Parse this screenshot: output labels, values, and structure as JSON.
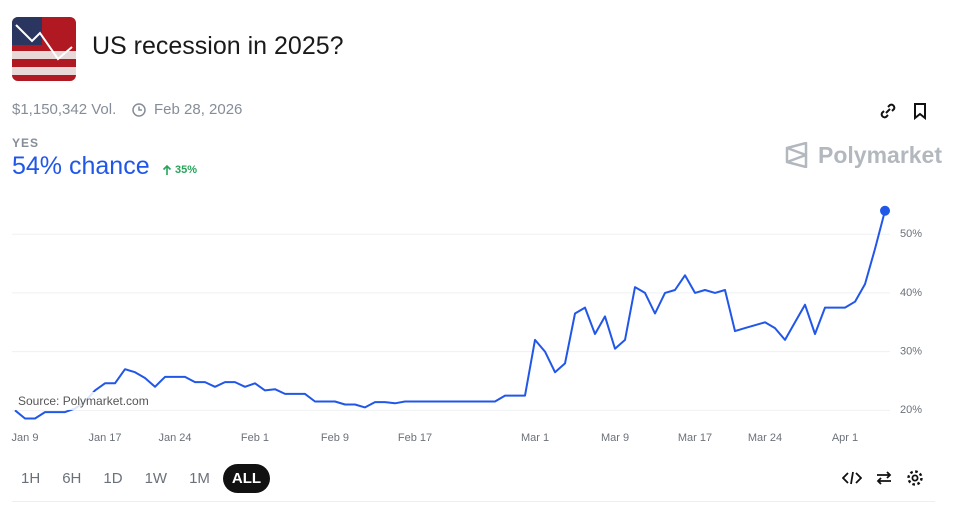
{
  "page": {
    "title": "US recession in 2025?",
    "volume": "$1,150,342 Vol.",
    "end_date": "Feb 28, 2026",
    "outcome": "YES",
    "chance": "54% chance",
    "change": "35%",
    "brand": "Polymarket",
    "source": "Source: Polymarket.com",
    "ranges": [
      "1H",
      "6H",
      "1D",
      "1W",
      "1M",
      "ALL"
    ]
  },
  "chart_data": {
    "type": "line",
    "color": "#2157e8",
    "x": [
      "Jan 8",
      "Jan 9",
      "Jan 10",
      "Jan 11",
      "Jan 12",
      "Jan 13",
      "Jan 14",
      "Jan 15",
      "Jan 16",
      "Jan 17",
      "Jan 18",
      "Jan 19",
      "Jan 20",
      "Jan 21",
      "Jan 22",
      "Jan 23",
      "Jan 24",
      "Jan 25",
      "Jan 26",
      "Jan 27",
      "Jan 28",
      "Jan 29",
      "Jan 30",
      "Jan 31",
      "Feb 1",
      "Feb 2",
      "Feb 3",
      "Feb 4",
      "Feb 5",
      "Feb 6",
      "Feb 7",
      "Feb 8",
      "Feb 9",
      "Feb 10",
      "Feb 11",
      "Feb 12",
      "Feb 13",
      "Feb 14",
      "Feb 15",
      "Feb 16",
      "Feb 17",
      "Feb 18",
      "Feb 19",
      "Feb 20",
      "Feb 21",
      "Feb 22",
      "Feb 23",
      "Feb 24",
      "Feb 25",
      "Feb 26",
      "Feb 27",
      "Feb 28",
      "Mar 1",
      "Mar 2",
      "Mar 3",
      "Mar 4",
      "Mar 5",
      "Mar 6",
      "Mar 7",
      "Mar 8",
      "Mar 9",
      "Mar 10",
      "Mar 11",
      "Mar 12",
      "Mar 13",
      "Mar 14",
      "Mar 15",
      "Mar 16",
      "Mar 17",
      "Mar 18",
      "Mar 19",
      "Mar 20",
      "Mar 21",
      "Mar 22",
      "Mar 23",
      "Mar 24",
      "Mar 25",
      "Mar 26",
      "Mar 27",
      "Mar 28",
      "Mar 29",
      "Mar 30",
      "Mar 31",
      "Apr 1",
      "Apr 2",
      "Apr 3",
      "Apr 4",
      "Apr 5"
    ],
    "values": [
      20,
      18.6,
      18.6,
      19.7,
      19.7,
      19.7,
      20.3,
      21.5,
      23.4,
      24.6,
      24.6,
      27,
      26.5,
      25.5,
      24,
      25.7,
      25.7,
      25.7,
      24.8,
      24.8,
      24,
      24.8,
      24.8,
      24,
      24.6,
      23.4,
      23.6,
      22.8,
      22.8,
      22.8,
      21.5,
      21.5,
      21.5,
      21,
      21,
      20.5,
      21.4,
      21.4,
      21.2,
      21.5,
      21.5,
      21.5,
      21.5,
      21.5,
      21.5,
      21.5,
      21.5,
      21.5,
      21.5,
      22.5,
      22.5,
      22.5,
      32,
      30,
      26.5,
      28,
      36.5,
      37.5,
      33,
      36,
      30.5,
      32,
      41,
      40,
      36.5,
      40,
      40.5,
      43,
      40,
      40.5,
      40,
      40.5,
      33.5,
      34,
      34.5,
      35,
      34,
      32,
      35,
      38,
      33,
      37.5,
      37.5,
      37.5,
      38.5,
      41.5,
      47.5,
      54
    ],
    "ylim": [
      17.5,
      56
    ],
    "yticks": [
      {
        "value": 20,
        "label": "20%"
      },
      {
        "value": 30,
        "label": "30%"
      },
      {
        "value": 40,
        "label": "40%"
      },
      {
        "value": 50,
        "label": "50%"
      }
    ],
    "xticks": [
      "Jan 9",
      "Jan 17",
      "Jan 24",
      "Feb 1",
      "Feb 9",
      "Feb 17",
      "Mar 1",
      "Mar 9",
      "Mar 17",
      "Mar 24",
      "Apr 1"
    ],
    "grid": true
  }
}
